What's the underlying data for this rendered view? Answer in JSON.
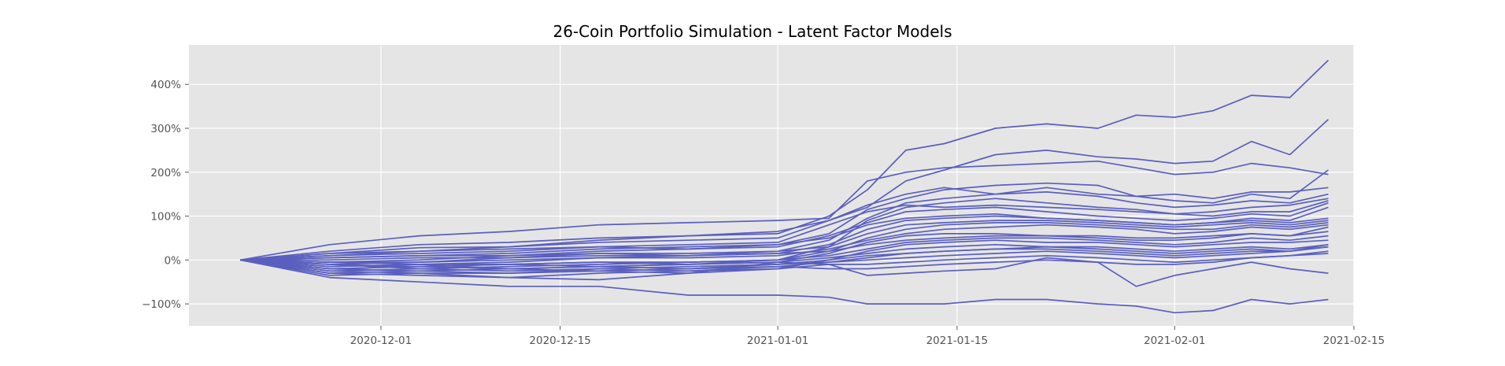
{
  "chart_data": {
    "type": "line",
    "title": "26-Coin Portfolio Simulation - Latent Factor Models",
    "xlabel": "",
    "ylabel": "",
    "xlim": [
      "2020-11-16",
      "2021-02-15"
    ],
    "ylim": [
      -150,
      490
    ],
    "y_ticks": [
      -100,
      0,
      100,
      200,
      300,
      400
    ],
    "y_tick_labels": [
      "−100%",
      "0%",
      "100%",
      "200%",
      "300%",
      "400%"
    ],
    "x_ticks": [
      "2020-12-01",
      "2020-12-15",
      "2021-01-01",
      "2021-01-15",
      "2021-02-01",
      "2021-02-15"
    ],
    "x_tick_labels": [
      "2020-12-01",
      "2020-12-15",
      "2021-01-01",
      "2021-01-15",
      "2021-02-01",
      "2021-02-15"
    ],
    "grid": true,
    "line_color": "#5a5fbf",
    "background": "#e5e5e5",
    "dates": [
      "2020-11-20",
      "2020-11-27",
      "2020-12-04",
      "2020-12-11",
      "2020-12-18",
      "2020-12-25",
      "2021-01-01",
      "2021-01-05",
      "2021-01-08",
      "2021-01-11",
      "2021-01-14",
      "2021-01-18",
      "2021-01-22",
      "2021-01-26",
      "2021-01-29",
      "2021-02-01",
      "2021-02-04",
      "2021-02-07",
      "2021-02-10",
      "2021-02-13"
    ],
    "series": [
      {
        "values": [
          0,
          20,
          35,
          40,
          50,
          55,
          60,
          100,
          160,
          250,
          265,
          300,
          310,
          300,
          330,
          325,
          340,
          375,
          370,
          455
        ]
      },
      {
        "values": [
          0,
          15,
          28,
          30,
          40,
          45,
          50,
          90,
          120,
          180,
          205,
          240,
          250,
          235,
          230,
          220,
          225,
          270,
          240,
          320
        ]
      },
      {
        "values": [
          0,
          35,
          55,
          65,
          80,
          85,
          90,
          95,
          180,
          200,
          210,
          215,
          220,
          225,
          210,
          195,
          200,
          220,
          210,
          195
        ]
      },
      {
        "values": [
          0,
          10,
          20,
          30,
          45,
          55,
          65,
          90,
          125,
          150,
          165,
          150,
          165,
          150,
          145,
          135,
          130,
          150,
          140,
          205
        ]
      },
      {
        "values": [
          0,
          5,
          10,
          15,
          25,
          30,
          35,
          60,
          115,
          140,
          160,
          170,
          175,
          170,
          145,
          150,
          140,
          155,
          155,
          165
        ]
      },
      {
        "values": [
          0,
          -10,
          -5,
          5,
          15,
          10,
          20,
          45,
          95,
          130,
          140,
          150,
          155,
          145,
          130,
          120,
          125,
          135,
          130,
          150
        ]
      },
      {
        "values": [
          0,
          -20,
          -15,
          -10,
          -5,
          -10,
          0,
          30,
          90,
          120,
          130,
          140,
          130,
          120,
          115,
          105,
          110,
          120,
          125,
          140
        ]
      },
      {
        "values": [
          0,
          10,
          15,
          20,
          30,
          35,
          40,
          80,
          110,
          125,
          120,
          125,
          120,
          115,
          110,
          105,
          100,
          110,
          110,
          135
        ]
      },
      {
        "values": [
          0,
          15,
          20,
          25,
          30,
          25,
          30,
          55,
          85,
          110,
          115,
          120,
          110,
          100,
          95,
          90,
          95,
          105,
          100,
          130
        ]
      },
      {
        "values": [
          0,
          -5,
          0,
          10,
          20,
          25,
          35,
          50,
          80,
          95,
          100,
          105,
          95,
          90,
          85,
          80,
          85,
          95,
          90,
          120
        ]
      },
      {
        "values": [
          0,
          -15,
          -10,
          -5,
          5,
          10,
          15,
          35,
          70,
          90,
          95,
          100,
          95,
          90,
          85,
          80,
          85,
          90,
          85,
          95
        ]
      },
      {
        "values": [
          0,
          5,
          10,
          10,
          15,
          15,
          20,
          30,
          60,
          80,
          85,
          90,
          90,
          85,
          80,
          75,
          80,
          85,
          80,
          90
        ]
      },
      {
        "values": [
          0,
          -25,
          -20,
          -15,
          -10,
          -5,
          0,
          20,
          50,
          70,
          80,
          85,
          85,
          80,
          75,
          70,
          70,
          80,
          75,
          85
        ]
      },
      {
        "values": [
          0,
          -5,
          -5,
          0,
          5,
          5,
          10,
          25,
          45,
          60,
          70,
          75,
          80,
          75,
          70,
          60,
          65,
          75,
          70,
          80
        ]
      },
      {
        "values": [
          0,
          -30,
          -25,
          -20,
          -15,
          -10,
          -5,
          15,
          40,
          55,
          60,
          60,
          55,
          55,
          50,
          50,
          55,
          60,
          55,
          75
        ]
      },
      {
        "values": [
          0,
          0,
          5,
          5,
          10,
          10,
          15,
          20,
          35,
          45,
          50,
          55,
          55,
          50,
          45,
          45,
          50,
          60,
          55,
          65
        ]
      },
      {
        "values": [
          0,
          -10,
          -15,
          -10,
          -5,
          -5,
          0,
          10,
          25,
          40,
          45,
          50,
          50,
          45,
          40,
          35,
          40,
          50,
          45,
          55
        ]
      },
      {
        "values": [
          0,
          -20,
          -25,
          -30,
          -20,
          -25,
          -20,
          0,
          20,
          35,
          40,
          45,
          40,
          40,
          35,
          30,
          35,
          40,
          40,
          45
        ]
      },
      {
        "values": [
          0,
          -15,
          -10,
          -20,
          -15,
          -10,
          -5,
          5,
          15,
          25,
          30,
          35,
          30,
          30,
          25,
          20,
          25,
          30,
          25,
          35
        ]
      },
      {
        "values": [
          0,
          -5,
          -10,
          -10,
          -15,
          -20,
          -15,
          -5,
          5,
          15,
          20,
          25,
          25,
          20,
          15,
          10,
          15,
          20,
          20,
          30
        ]
      },
      {
        "values": [
          0,
          -20,
          -15,
          -20,
          -25,
          -20,
          -10,
          0,
          10,
          15,
          20,
          25,
          30,
          25,
          20,
          15,
          20,
          25,
          20,
          35
        ]
      },
      {
        "values": [
          0,
          -10,
          -20,
          -25,
          -20,
          -15,
          -10,
          -5,
          0,
          5,
          10,
          15,
          20,
          15,
          10,
          5,
          10,
          15,
          20,
          30
        ]
      },
      {
        "values": [
          0,
          -25,
          -30,
          -30,
          -25,
          -30,
          -20,
          -10,
          -10,
          -5,
          0,
          5,
          10,
          5,
          0,
          -5,
          0,
          5,
          10,
          20
        ]
      },
      {
        "values": [
          0,
          -30,
          -35,
          -40,
          -30,
          -25,
          -15,
          -20,
          -20,
          -15,
          -10,
          -5,
          0,
          -5,
          -10,
          -10,
          -5,
          5,
          10,
          15
        ]
      },
      {
        "values": [
          0,
          -35,
          -30,
          -40,
          -45,
          -30,
          -5,
          -10,
          -35,
          -30,
          -25,
          -20,
          5,
          -5,
          -60,
          -35,
          -20,
          -5,
          -20,
          -30
        ]
      },
      {
        "values": [
          0,
          -40,
          -50,
          -60,
          -60,
          -80,
          -80,
          -85,
          -100,
          -100,
          -100,
          -90,
          -90,
          -100,
          -105,
          -120,
          -115,
          -90,
          -100,
          -90
        ]
      }
    ]
  }
}
